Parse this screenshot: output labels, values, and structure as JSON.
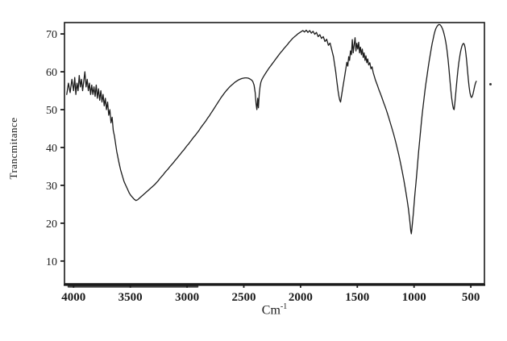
{
  "figure": {
    "y_axis_label": "Trancmitance",
    "x_axis_label_base": "Cm",
    "x_axis_label_exp": "-1"
  },
  "chart_data": {
    "type": "line",
    "title": "",
    "xlabel": "Cm^-1 (wavenumber)",
    "ylabel": "Trancmitance (%)",
    "x_axis_reversed": true,
    "xlim": [
      4080,
      380
    ],
    "ylim": [
      4,
      73
    ],
    "x_ticks": [
      4000,
      3500,
      3000,
      2500,
      2000,
      1500,
      1000,
      500
    ],
    "y_ticks": [
      10,
      20,
      30,
      40,
      50,
      60,
      70
    ],
    "grid": false,
    "legend": "none",
    "line_color": "#1c1c1c",
    "axis_color": "#1b1b1b",
    "points": [
      [
        4060,
        54
      ],
      [
        4045,
        57
      ],
      [
        4030,
        54.5
      ],
      [
        4015,
        58
      ],
      [
        4000,
        55
      ],
      [
        3990,
        58.5
      ],
      [
        3980,
        54
      ],
      [
        3970,
        57
      ],
      [
        3960,
        55
      ],
      [
        3950,
        59
      ],
      [
        3940,
        56
      ],
      [
        3930,
        58
      ],
      [
        3920,
        55
      ],
      [
        3910,
        57.5
      ],
      [
        3900,
        60
      ],
      [
        3890,
        56
      ],
      [
        3880,
        58
      ],
      [
        3870,
        55
      ],
      [
        3860,
        57
      ],
      [
        3850,
        54
      ],
      [
        3840,
        56.5
      ],
      [
        3830,
        54
      ],
      [
        3820,
        56
      ],
      [
        3810,
        53.5
      ],
      [
        3800,
        56.5
      ],
      [
        3790,
        53
      ],
      [
        3780,
        55.5
      ],
      [
        3770,
        52.5
      ],
      [
        3760,
        55
      ],
      [
        3750,
        52
      ],
      [
        3740,
        54
      ],
      [
        3730,
        51
      ],
      [
        3720,
        53
      ],
      [
        3710,
        50
      ],
      [
        3700,
        52
      ],
      [
        3690,
        48.5
      ],
      [
        3680,
        50
      ],
      [
        3670,
        46.5
      ],
      [
        3660,
        48
      ],
      [
        3650,
        44.5
      ],
      [
        3640,
        43
      ],
      [
        3630,
        41
      ],
      [
        3620,
        39
      ],
      [
        3610,
        37.5
      ],
      [
        3600,
        36
      ],
      [
        3585,
        34
      ],
      [
        3570,
        32.5
      ],
      [
        3555,
        31
      ],
      [
        3540,
        30
      ],
      [
        3525,
        29
      ],
      [
        3510,
        28
      ],
      [
        3495,
        27.3
      ],
      [
        3480,
        26.8
      ],
      [
        3465,
        26.3
      ],
      [
        3450,
        26
      ],
      [
        3435,
        26.2
      ],
      [
        3420,
        26.6
      ],
      [
        3405,
        27
      ],
      [
        3390,
        27.4
      ],
      [
        3375,
        27.8
      ],
      [
        3360,
        28.2
      ],
      [
        3345,
        28.6
      ],
      [
        3330,
        29
      ],
      [
        3315,
        29.4
      ],
      [
        3300,
        29.8
      ],
      [
        3285,
        30.2
      ],
      [
        3270,
        30.7
      ],
      [
        3255,
        31.2
      ],
      [
        3240,
        31.8
      ],
      [
        3225,
        32.3
      ],
      [
        3210,
        32.8
      ],
      [
        3195,
        33.4
      ],
      [
        3180,
        33.9
      ],
      [
        3165,
        34.4
      ],
      [
        3150,
        35
      ],
      [
        3135,
        35.5
      ],
      [
        3120,
        36
      ],
      [
        3105,
        36.6
      ],
      [
        3090,
        37.1
      ],
      [
        3075,
        37.7
      ],
      [
        3060,
        38.2
      ],
      [
        3045,
        38.8
      ],
      [
        3030,
        39.3
      ],
      [
        3015,
        39.9
      ],
      [
        3000,
        40.5
      ],
      [
        2985,
        41
      ],
      [
        2970,
        41.6
      ],
      [
        2955,
        42.2
      ],
      [
        2940,
        42.8
      ],
      [
        2925,
        43.3
      ],
      [
        2910,
        43.9
      ],
      [
        2895,
        44.5
      ],
      [
        2880,
        45.2
      ],
      [
        2865,
        45.8
      ],
      [
        2850,
        46.4
      ],
      [
        2835,
        47
      ],
      [
        2820,
        47.7
      ],
      [
        2805,
        48.3
      ],
      [
        2790,
        49
      ],
      [
        2775,
        49.7
      ],
      [
        2760,
        50.4
      ],
      [
        2745,
        51.1
      ],
      [
        2730,
        51.8
      ],
      [
        2715,
        52.5
      ],
      [
        2700,
        53.2
      ],
      [
        2685,
        53.8
      ],
      [
        2670,
        54.4
      ],
      [
        2655,
        55
      ],
      [
        2640,
        55.5
      ],
      [
        2625,
        56
      ],
      [
        2610,
        56.4
      ],
      [
        2595,
        56.8
      ],
      [
        2580,
        57.2
      ],
      [
        2565,
        57.5
      ],
      [
        2550,
        57.8
      ],
      [
        2535,
        58
      ],
      [
        2520,
        58.2
      ],
      [
        2505,
        58.3
      ],
      [
        2490,
        58.4
      ],
      [
        2475,
        58.4
      ],
      [
        2460,
        58.3
      ],
      [
        2445,
        58.1
      ],
      [
        2430,
        57.8
      ],
      [
        2420,
        57.4
      ],
      [
        2410,
        56.5
      ],
      [
        2400,
        54.5
      ],
      [
        2392,
        51.5
      ],
      [
        2385,
        50
      ],
      [
        2378,
        53
      ],
      [
        2371,
        50.5
      ],
      [
        2364,
        54
      ],
      [
        2357,
        56
      ],
      [
        2350,
        57.2
      ],
      [
        2340,
        58
      ],
      [
        2325,
        58.8
      ],
      [
        2310,
        59.5
      ],
      [
        2295,
        60.2
      ],
      [
        2280,
        60.9
      ],
      [
        2265,
        61.5
      ],
      [
        2250,
        62.1
      ],
      [
        2235,
        62.7
      ],
      [
        2220,
        63.3
      ],
      [
        2205,
        63.9
      ],
      [
        2190,
        64.5
      ],
      [
        2175,
        65.1
      ],
      [
        2160,
        65.6
      ],
      [
        2145,
        66.2
      ],
      [
        2130,
        66.7
      ],
      [
        2115,
        67.2
      ],
      [
        2100,
        67.8
      ],
      [
        2085,
        68.3
      ],
      [
        2070,
        68.8
      ],
      [
        2055,
        69.2
      ],
      [
        2040,
        69.6
      ],
      [
        2025,
        70
      ],
      [
        2010,
        70.3
      ],
      [
        1995,
        70.6
      ],
      [
        1980,
        70.9
      ],
      [
        1965,
        70.5
      ],
      [
        1950,
        71
      ],
      [
        1935,
        70.4
      ],
      [
        1920,
        70.9
      ],
      [
        1905,
        70.2
      ],
      [
        1890,
        70.7
      ],
      [
        1875,
        69.9
      ],
      [
        1860,
        70.4
      ],
      [
        1845,
        69.3
      ],
      [
        1830,
        69.8
      ],
      [
        1815,
        68.8
      ],
      [
        1800,
        69.3
      ],
      [
        1785,
        68
      ],
      [
        1770,
        68.6
      ],
      [
        1755,
        67
      ],
      [
        1740,
        67.6
      ],
      [
        1725,
        65.8
      ],
      [
        1710,
        64
      ],
      [
        1700,
        62
      ],
      [
        1690,
        60
      ],
      [
        1680,
        57.5
      ],
      [
        1670,
        55
      ],
      [
        1662,
        53.5
      ],
      [
        1655,
        52.5
      ],
      [
        1648,
        52
      ],
      [
        1640,
        53.5
      ],
      [
        1632,
        55
      ],
      [
        1624,
        56.5
      ],
      [
        1616,
        58
      ],
      [
        1608,
        59.5
      ],
      [
        1600,
        61
      ],
      [
        1592,
        62.5
      ],
      [
        1584,
        61.5
      ],
      [
        1576,
        64
      ],
      [
        1568,
        63
      ],
      [
        1560,
        65.5
      ],
      [
        1552,
        64.5
      ],
      [
        1544,
        68.5
      ],
      [
        1536,
        65
      ],
      [
        1528,
        67
      ],
      [
        1520,
        69
      ],
      [
        1512,
        65.5
      ],
      [
        1504,
        67.5
      ],
      [
        1496,
        66
      ],
      [
        1488,
        67.8
      ],
      [
        1480,
        65
      ],
      [
        1472,
        66.5
      ],
      [
        1464,
        64.5
      ],
      [
        1456,
        66
      ],
      [
        1448,
        63.8
      ],
      [
        1440,
        65
      ],
      [
        1432,
        63
      ],
      [
        1424,
        64.2
      ],
      [
        1416,
        62.4
      ],
      [
        1408,
        63.4
      ],
      [
        1400,
        61.8
      ],
      [
        1390,
        62.4
      ],
      [
        1380,
        60.8
      ],
      [
        1370,
        61.3
      ],
      [
        1360,
        59.8
      ],
      [
        1350,
        58.8
      ],
      [
        1340,
        57.8
      ],
      [
        1330,
        57
      ],
      [
        1320,
        56.2
      ],
      [
        1310,
        55.3
      ],
      [
        1300,
        54.5
      ],
      [
        1285,
        53.3
      ],
      [
        1270,
        52
      ],
      [
        1255,
        50.8
      ],
      [
        1240,
        49.5
      ],
      [
        1225,
        48.1
      ],
      [
        1210,
        46.6
      ],
      [
        1195,
        45.1
      ],
      [
        1180,
        43.5
      ],
      [
        1165,
        41.8
      ],
      [
        1150,
        40
      ],
      [
        1135,
        38.1
      ],
      [
        1120,
        36
      ],
      [
        1105,
        33.8
      ],
      [
        1090,
        31.4
      ],
      [
        1075,
        28.8
      ],
      [
        1060,
        26
      ],
      [
        1050,
        23.8
      ],
      [
        1042,
        21.8
      ],
      [
        1035,
        19.8
      ],
      [
        1029,
        18
      ],
      [
        1024,
        17.2
      ],
      [
        1019,
        18.5
      ],
      [
        1013,
        20.5
      ],
      [
        1006,
        22.8
      ],
      [
        1000,
        25
      ],
      [
        992,
        27.8
      ],
      [
        984,
        30.5
      ],
      [
        976,
        33.2
      ],
      [
        968,
        36
      ],
      [
        960,
        38.8
      ],
      [
        952,
        41.5
      ],
      [
        944,
        44
      ],
      [
        936,
        46.5
      ],
      [
        928,
        48.8
      ],
      [
        920,
        51
      ],
      [
        912,
        53
      ],
      [
        904,
        55
      ],
      [
        896,
        56.8
      ],
      [
        888,
        58.5
      ],
      [
        880,
        60.2
      ],
      [
        872,
        61.8
      ],
      [
        864,
        63.3
      ],
      [
        856,
        64.8
      ],
      [
        848,
        66.2
      ],
      [
        840,
        67.5
      ],
      [
        832,
        68.7
      ],
      [
        824,
        69.8
      ],
      [
        816,
        70.7
      ],
      [
        808,
        71.4
      ],
      [
        800,
        71.9
      ],
      [
        790,
        72.3
      ],
      [
        780,
        72.5
      ],
      [
        770,
        72.4
      ],
      [
        760,
        72
      ],
      [
        750,
        71.4
      ],
      [
        740,
        70.5
      ],
      [
        730,
        69.3
      ],
      [
        720,
        67.8
      ],
      [
        710,
        65.8
      ],
      [
        700,
        63.2
      ],
      [
        692,
        60.5
      ],
      [
        684,
        57.8
      ],
      [
        676,
        55.2
      ],
      [
        668,
        53
      ],
      [
        660,
        51.2
      ],
      [
        653,
        50.2
      ],
      [
        647,
        50
      ],
      [
        641,
        51.5
      ],
      [
        634,
        53.8
      ],
      [
        627,
        56.2
      ],
      [
        620,
        58.5
      ],
      [
        613,
        60.6
      ],
      [
        606,
        62.4
      ],
      [
        599,
        63.8
      ],
      [
        592,
        65
      ],
      [
        585,
        66
      ],
      [
        578,
        66.8
      ],
      [
        571,
        67.3
      ],
      [
        564,
        67.5
      ],
      [
        557,
        67.2
      ],
      [
        550,
        66.3
      ],
      [
        543,
        64.8
      ],
      [
        536,
        62.8
      ],
      [
        529,
        60.4
      ],
      [
        522,
        58
      ],
      [
        515,
        56
      ],
      [
        508,
        54.5
      ],
      [
        501,
        53.6
      ],
      [
        494,
        53.2
      ],
      [
        487,
        53.5
      ],
      [
        480,
        54.2
      ],
      [
        473,
        55.2
      ],
      [
        466,
        56.2
      ],
      [
        459,
        57
      ],
      [
        452,
        57.5
      ]
    ]
  }
}
